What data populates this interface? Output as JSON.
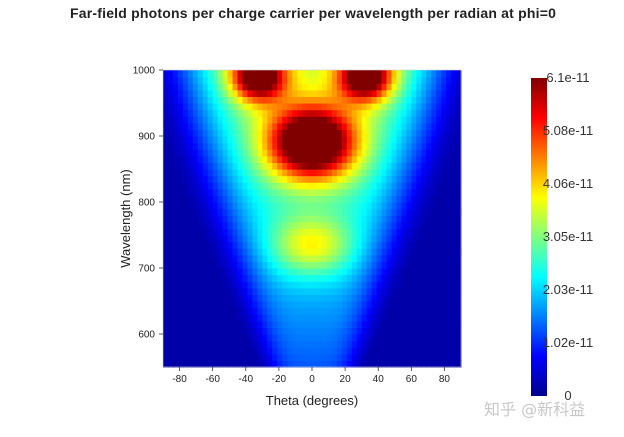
{
  "chart_data": {
    "type": "heatmap",
    "title": "Far-field photons per charge carrier per wavelength per radian at phi=0",
    "xlabel": "Theta (degrees)",
    "ylabel": "Wavelength (nm)",
    "xlim": [
      -90,
      90
    ],
    "ylim": [
      550,
      1000
    ],
    "x_ticks": [
      "-80",
      "-60",
      "-40",
      "-20",
      "0",
      "20",
      "40",
      "60",
      "80"
    ],
    "y_ticks": [
      "600",
      "700",
      "800",
      "900",
      "1000"
    ],
    "colorscale": "jet",
    "colorbar": {
      "min": 0,
      "max": 6.1e-11,
      "tick_labels": [
        "6.1e-11",
        "5.08e-11",
        "4.06e-11",
        "3.05e-11",
        "2.03e-11",
        "1.02e-11",
        "0"
      ]
    },
    "features": [
      {
        "description": "peak",
        "theta": 0,
        "wavelength": 890,
        "value": 6.1e-11
      },
      {
        "description": "upper lobes",
        "theta_range": [
          -45,
          45
        ],
        "wavelength_range": [
          960,
          1000
        ],
        "value": 5.5e-11
      },
      {
        "description": "secondary maximum",
        "theta": 0,
        "wavelength": 730,
        "value": 3.3e-11
      }
    ]
  },
  "watermark": "知乎 @新科益"
}
